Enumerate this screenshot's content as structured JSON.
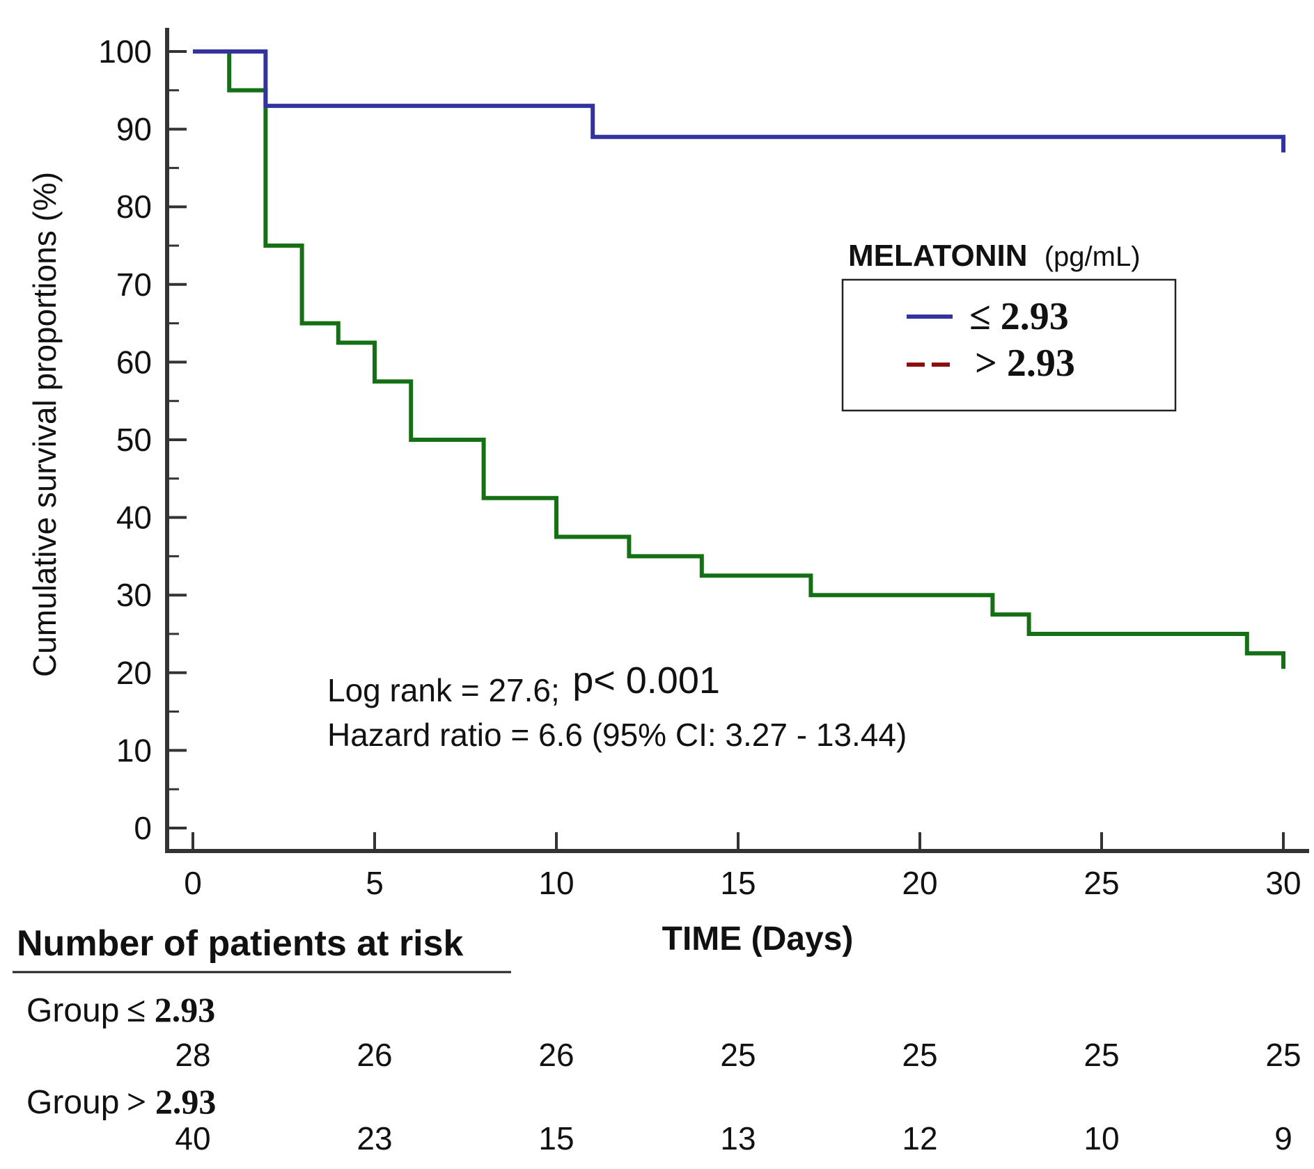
{
  "chart_data": {
    "type": "line",
    "subtype": "kaplan-meier",
    "xlabel": "TIME (Days)",
    "ylabel": "Cumulative survival proportions (%)",
    "xlim": [
      0,
      30
    ],
    "ylim": [
      0,
      100
    ],
    "x_ticks": [
      "0",
      "5",
      "10",
      "15",
      "20",
      "25",
      "30"
    ],
    "y_ticks": [
      "0",
      "10",
      "20",
      "30",
      "40",
      "50",
      "60",
      "70",
      "80",
      "90",
      "100"
    ],
    "legend": {
      "title": "MELATONIN",
      "title_unit": "(pg/mL)",
      "entries": [
        {
          "label": "≤ 2.93",
          "color": "#3333a0",
          "style": "solid"
        },
        {
          "label": "> 2.93",
          "color": "#8b1010",
          "style": "dashed"
        }
      ],
      "placement": "right"
    },
    "series": [
      {
        "name": "≤ 2.93",
        "color": "#3333a0",
        "steps": [
          [
            0,
            100
          ],
          [
            2,
            93
          ],
          [
            11,
            89
          ],
          [
            30,
            89
          ]
        ],
        "censor_end": 87
      },
      {
        "name": "> 2.93",
        "color": "#157015",
        "steps": [
          [
            0,
            100
          ],
          [
            1,
            95
          ],
          [
            2,
            75
          ],
          [
            3,
            65
          ],
          [
            4,
            62.5
          ],
          [
            5,
            57.5
          ],
          [
            6,
            50
          ],
          [
            8,
            42.5
          ],
          [
            10,
            37.5
          ],
          [
            12,
            35
          ],
          [
            14,
            32.5
          ],
          [
            17,
            30
          ],
          [
            22,
            27.5
          ],
          [
            23,
            25
          ],
          [
            29,
            22.5
          ],
          [
            30,
            22.5
          ]
        ],
        "censor_end": 20.5
      }
    ],
    "annotations": {
      "line1_prefix": "Log rank = 27.6;",
      "line1_p": "p< 0.001",
      "line2": "Hazard ratio = 6.6 (95% CI: 3.27 - 13.44)"
    }
  },
  "risk_table": {
    "title": "Number of patients at risk",
    "groups": [
      {
        "label_prefix": "Group",
        "label_value": "≤ 2.93",
        "counts": [
          "28",
          "26",
          "26",
          "25",
          "25",
          "25",
          "25"
        ]
      },
      {
        "label_prefix": "Group",
        "label_value": "> 2.93",
        "counts": [
          "40",
          "23",
          "15",
          "13",
          "12",
          "10",
          "9"
        ]
      }
    ]
  }
}
